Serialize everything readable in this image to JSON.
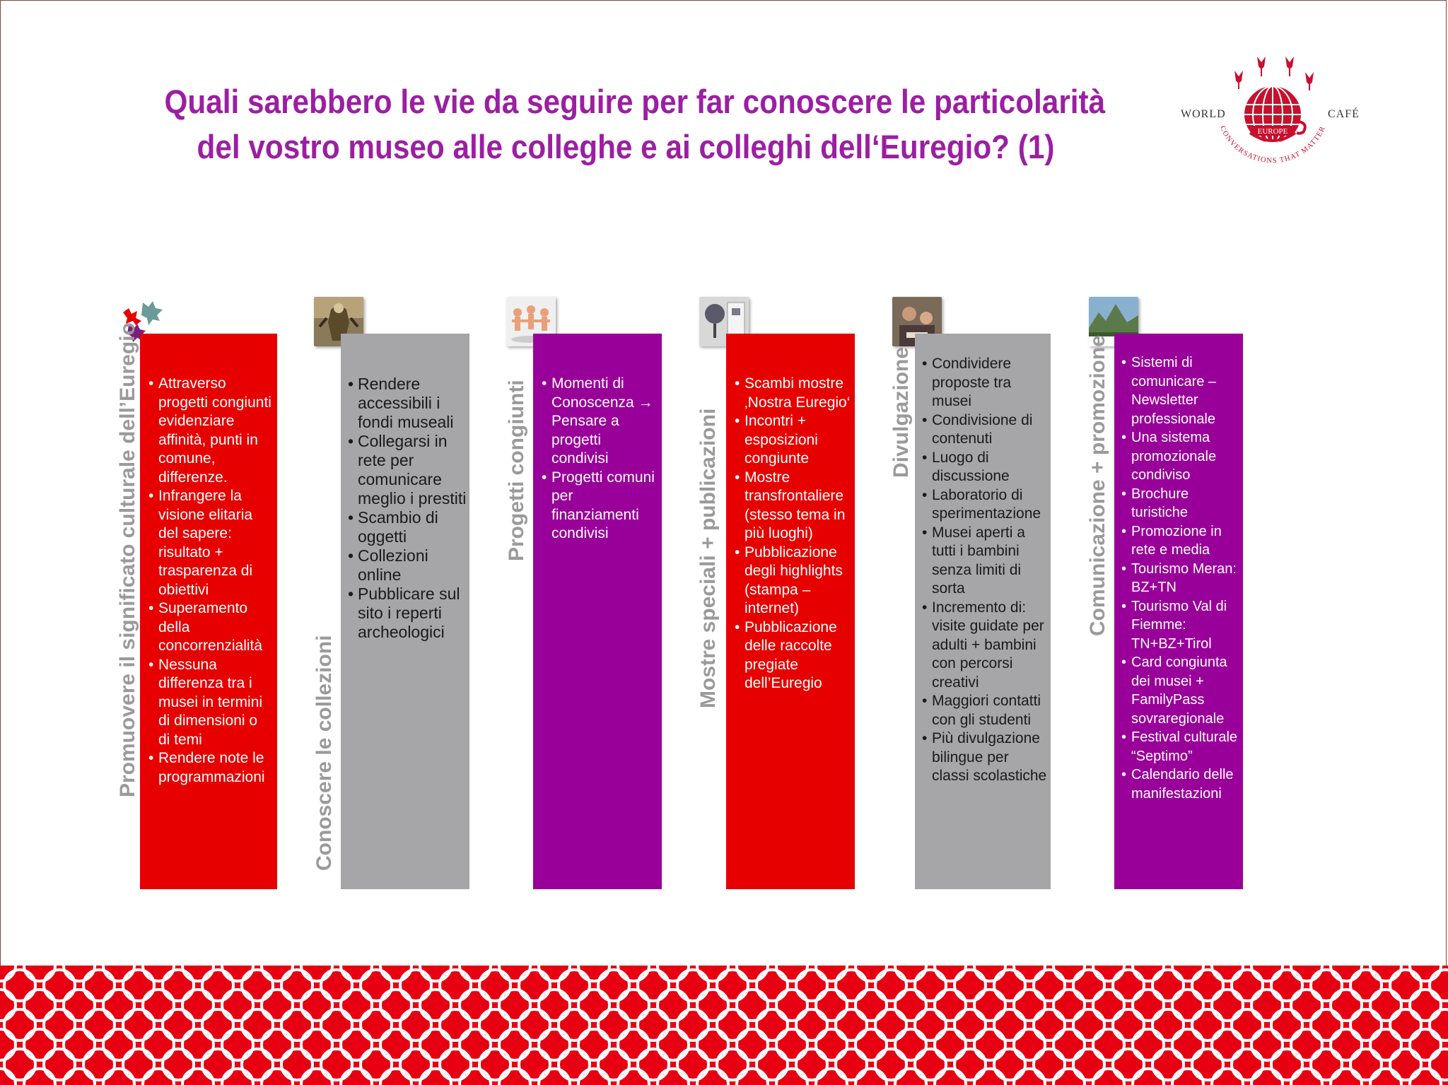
{
  "title_lines": [
    "Quali sarebbero le vie da seguire per far conoscere le particolarità",
    "del vostro museo alle colleghe e ai colleghi dell‘Euregio? (1)"
  ],
  "logo": {
    "left_word": "WORLD",
    "right_word": "CAFÉ",
    "center_word": "EUROPE",
    "arc_text": "CONVERSATIONS THAT MATTER",
    "color": "#c8102e"
  },
  "colors": {
    "title": "#9b1fa2",
    "red": "#e60000",
    "grey": "#a6a5a8",
    "purple": "#990099",
    "label_grey": "#9a9a9a"
  },
  "columns": [
    {
      "label": "Promuovere il significato culturale dell’Euregio",
      "thumb_icon": "puzzle-pieces-icon",
      "items": [
        "Attraverso progetti congiunti evidenziare affinità,  punti in comune, differenze.",
        "Infrangere la visione elitaria del sapere: risultato + trasparenza di obiettivi",
        "Superamento della concorrenzialità",
        "Nessuna differenza tra i musei in termini di dimensioni o di temi",
        "Rendere note le programmazioni"
      ]
    },
    {
      "label": "Conoscere le collezioni",
      "thumb_icon": "museum-figure-icon",
      "items": [
        "Rendere accessibili i fondi museali",
        "Collegarsi in rete per comunicare meglio i prestiti",
        "Scambio di oggetti",
        "Collezioni online",
        "Pubblicare sul sito i reperti archeologici"
      ]
    },
    {
      "label": "Progetti congiunti",
      "thumb_icon": "paper-people-chain-icon",
      "items": [
        "Momenti di Conoscenza → Pensare a progetti condivisi",
        "Progetti comuni per finanziamenti condivisi"
      ]
    },
    {
      "label": "Mostre speciali + publicazioni",
      "thumb_icon": "exhibition-globe-icon",
      "items": [
        "Scambi mostre ‚Nostra Euregio‘",
        "Incontri + esposizioni congiunte",
        "Mostre transfrontaliere (stesso tema in più luoghi)",
        "Pubblicazione degli highlights (stampa – internet)",
        "Pubblicazione delle raccolte pregiate dell’Euregio"
      ]
    },
    {
      "label": "Divulgazione",
      "thumb_icon": "children-workshop-icon",
      "items": [
        "Condividere proposte tra musei",
        "Condivisione di contenuti",
        "Luogo di discussione",
        "Laboratorio di sperimentazione",
        "Musei aperti a tutti i bambini senza limiti di sorta",
        "Incremento di: visite guidate per adulti + bambini con percorsi creativi",
        "Maggiori contatti con gli studenti",
        "Più divulgazione bilingue per classi scolastiche"
      ]
    },
    {
      "label": "Comunicazione + promozione",
      "thumb_icon": "mountain-website-icon",
      "items": [
        "Sistemi di comunicare – Newsletter professionale",
        "Una sistema promozionale condiviso",
        "Brochure turistiche",
        "Promozione in rete  e media",
        "Tourismo Meran: BZ+TN",
        "Tourismo Val di Fiemme: TN+BZ+Tirol",
        "Card congiunta dei musei + FamilyPass sovraregionale",
        "Festival culturale “Septimo”",
        "Calendario delle manifestazioni"
      ]
    }
  ]
}
